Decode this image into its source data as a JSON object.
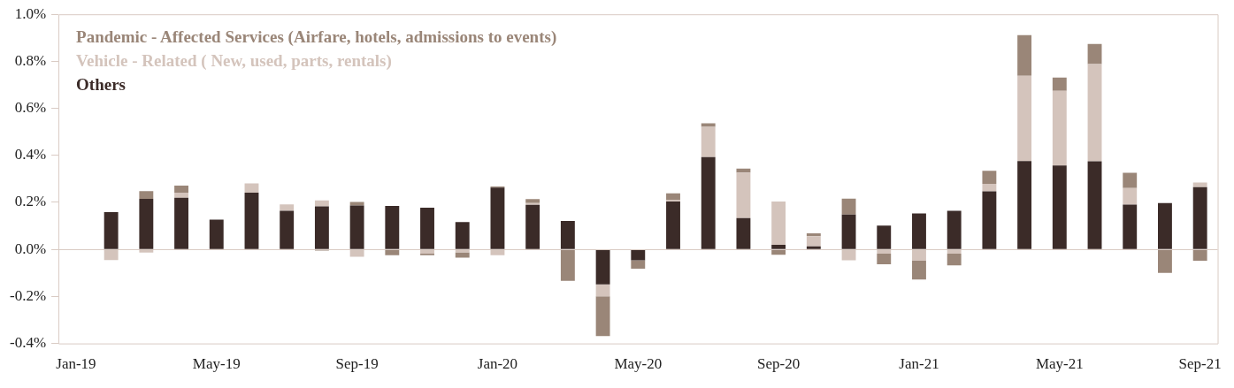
{
  "chart_data": {
    "type": "bar",
    "stacked": true,
    "legend": "top left",
    "categories": [
      "Jan-19",
      null,
      null,
      null,
      "May-19",
      null,
      null,
      null,
      "Sep-19",
      null,
      null,
      null,
      "Jan-20",
      null,
      null,
      null,
      "May-20",
      null,
      null,
      null,
      "Sep-20",
      null,
      null,
      null,
      "Jan-21",
      null,
      null,
      null,
      "May-21",
      null,
      null,
      null,
      "Sep-21"
    ],
    "ylim": [
      -0.4,
      1.0
    ],
    "yticks": [
      {
        "value": -0.4,
        "label": "-0.4%"
      },
      {
        "value": -0.2,
        "label": "-0.2%"
      },
      {
        "value": 0,
        "label": "0.0%"
      },
      {
        "value": 0.2,
        "label": "0.2%"
      },
      {
        "value": 0.4,
        "label": "0.4%"
      },
      {
        "value": 0.6,
        "label": "0.6%"
      },
      {
        "value": 0.8,
        "label": "0.8%"
      },
      {
        "value": 1.0,
        "label": "1.0%"
      }
    ],
    "series": [
      {
        "name": "Others",
        "color": "#3b2b28",
        "values": [
          null,
          0.159,
          0.215,
          0.22,
          0.127,
          0.241,
          0.164,
          0.183,
          0.187,
          0.185,
          0.177,
          0.116,
          0.263,
          0.19,
          0.121,
          -0.149,
          -0.046,
          0.204,
          0.393,
          0.133,
          0.02,
          0.013,
          0.148,
          0.101,
          0.153,
          0.164,
          0.247,
          0.376,
          0.357,
          0.375,
          0.191,
          0.197,
          0.265
        ]
      },
      {
        "name": "Vehicle - Related ( New, used, parts, rentals)",
        "color": "#d4c4bc",
        "values": [
          null,
          -0.045,
          -0.013,
          0.021,
          null,
          0.04,
          0.028,
          0.025,
          -0.031,
          null,
          -0.018,
          -0.012,
          -0.025,
          0.007,
          null,
          -0.05,
          null,
          0.007,
          0.128,
          0.194,
          0.184,
          0.043,
          -0.046,
          -0.018,
          -0.048,
          -0.018,
          0.032,
          0.363,
          0.318,
          0.413,
          0.07,
          null,
          0.02
        ]
      },
      {
        "name": "Pandemic - Affected Services (Airfare, hotels, admissions to events)",
        "color": "#9a8678",
        "values": [
          null,
          null,
          0.033,
          0.03,
          null,
          null,
          null,
          -0.005,
          0.015,
          -0.025,
          -0.007,
          -0.023,
          0.005,
          0.017,
          -0.134,
          -0.17,
          -0.036,
          0.028,
          0.015,
          0.017,
          -0.023,
          0.012,
          0.068,
          -0.045,
          -0.08,
          -0.05,
          0.055,
          0.172,
          0.056,
          0.086,
          0.065,
          -0.1,
          -0.048
        ]
      }
    ]
  }
}
